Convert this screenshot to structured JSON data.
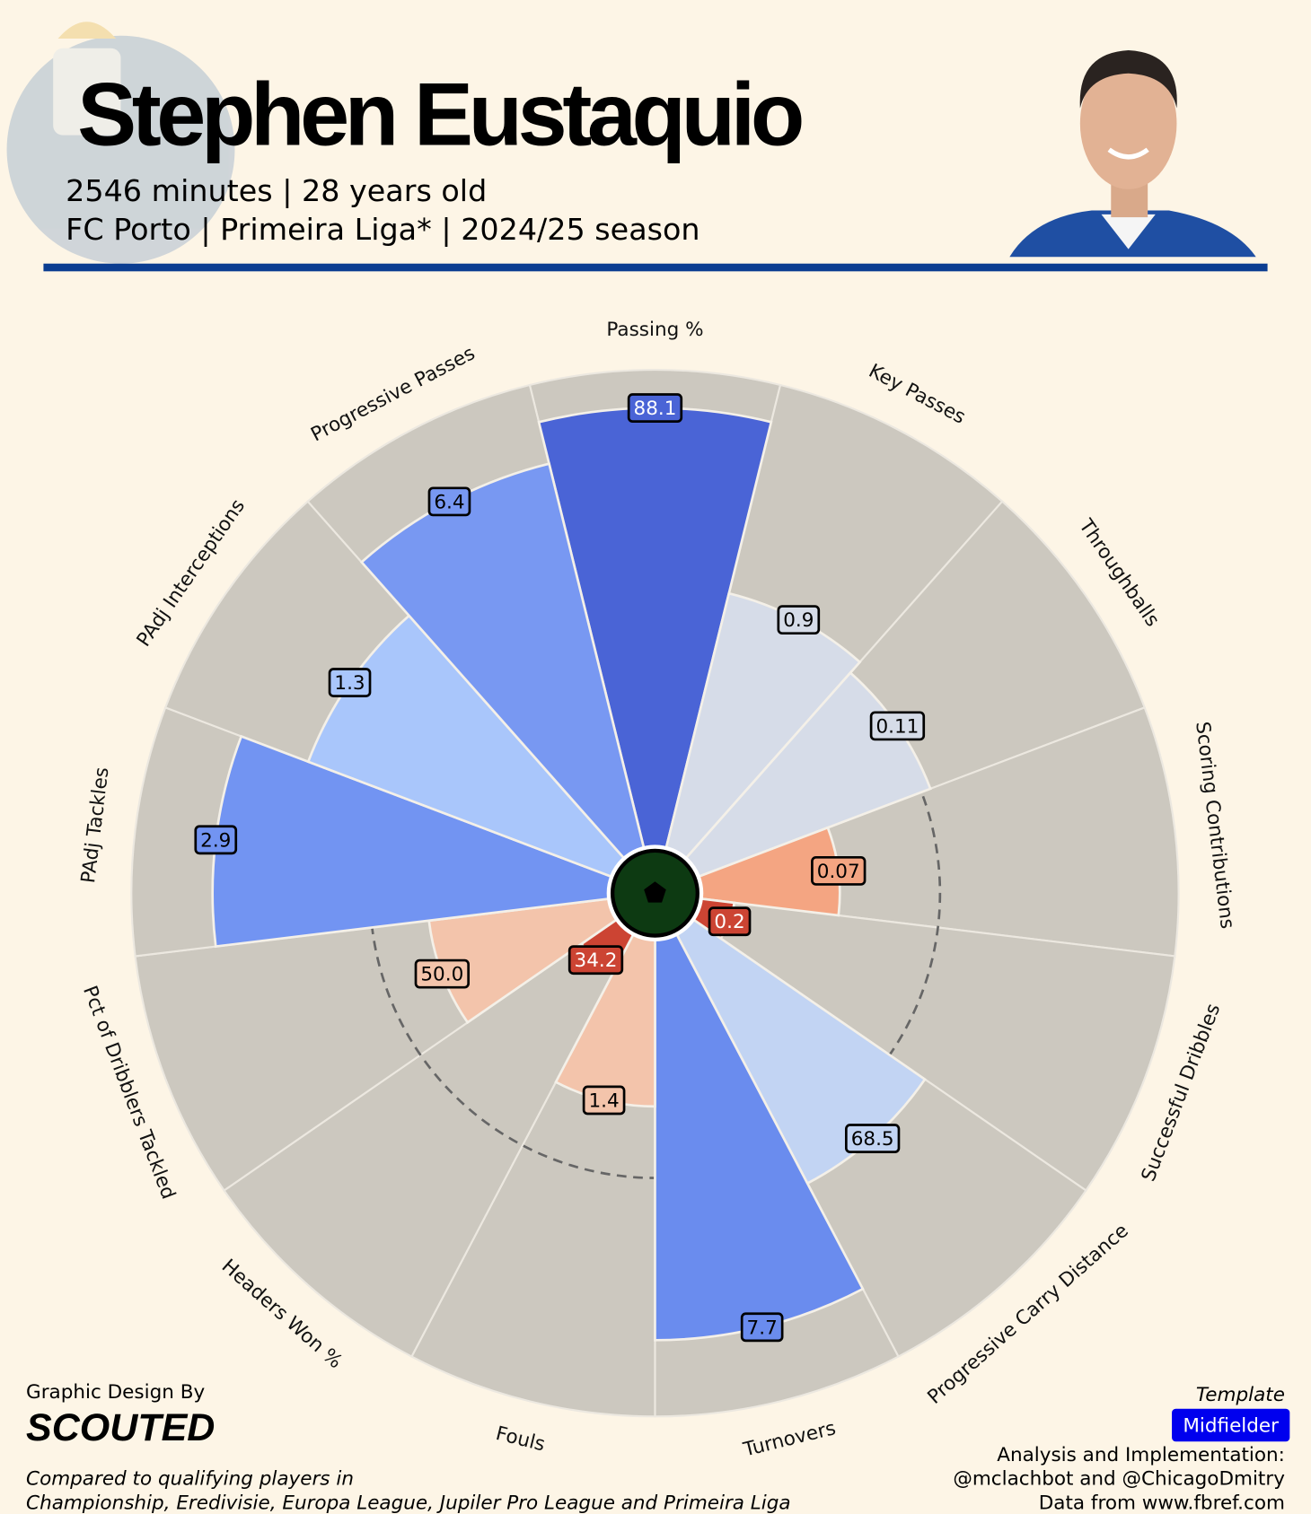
{
  "header": {
    "title": "Stephen Eustaquio",
    "subtitle_1": "2546 minutes | 28 years old",
    "subtitle_2": "FC Porto | Primeira Liga* | 2024/25 season"
  },
  "chart_data": {
    "type": "pizza",
    "categories": [
      "Passing %",
      "Key Passes",
      "Throughballs",
      "Scoring Contributions",
      "Successful Dribbles",
      "Progressive Carry Distance",
      "Turnovers",
      "Fouls",
      "Headers Won %",
      "Pct of Dribblers Tackled",
      "PAdj Tackles",
      "PAdj Interceptions",
      "Progressive Passes"
    ],
    "values": [
      92,
      55,
      52,
      29,
      7,
      59,
      84,
      35,
      9,
      38,
      83,
      68,
      83
    ],
    "stat_labels": [
      "88.1",
      "0.9",
      "0.11",
      "0.07",
      "0.2",
      "68.5",
      "7.7",
      "1.4",
      "34.2",
      "50.0",
      "2.9",
      "1.3",
      "6.4"
    ],
    "colors": [
      "#4a64d6",
      "#d6dce8",
      "#d6dce8",
      "#f4a582",
      "#cc4433",
      "#c2d4f3",
      "#6a8cee",
      "#f3c4ab",
      "#cc4433",
      "#f3c4ab",
      "#7294f2",
      "#a9c6fb",
      "#7898f2"
    ],
    "ylim": [
      0,
      100
    ],
    "reference_line": 50
  },
  "footer": {
    "design_by": "Graphic Design By",
    "brand": "SCOUTED",
    "note_1": "Compared to qualifying players in",
    "note_2": "Championship, Eredivisie, Europa League, Jupiler Pro League and Primeira Liga",
    "template_label": "Template",
    "template": "Midfielder",
    "credit_1": "Analysis and Implementation:",
    "credit_2": "@mclachbot and @ChicagoDmitry",
    "credit_3": "Data from www.fbref.com"
  }
}
